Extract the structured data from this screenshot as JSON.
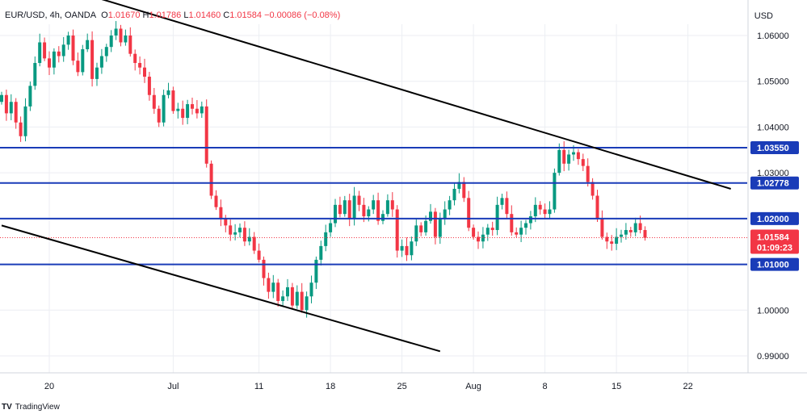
{
  "legend": {
    "symbol": "EUR/USD, 4h, OANDA",
    "open_label": "O",
    "open": "1.01670",
    "high_label": "H",
    "high": "1.01786",
    "low_label": "L",
    "low": "1.01460",
    "close_label": "C",
    "close": "1.01584",
    "change": "−0.00086 (−0.08%)"
  },
  "currency": "USD",
  "footer": {
    "brand_mark": "TV",
    "brand_text": "TradingView"
  },
  "colors": {
    "up": "#089981",
    "down": "#f23645",
    "level_line": "#1a3cb8",
    "trend_line": "#000000",
    "grid": "#eceef3",
    "current_price": "#f23645"
  },
  "chart_data": {
    "type": "candlestick",
    "instrument": "EUR/USD",
    "timeframe": "4h",
    "ylim": [
      0.9865,
      1.0655
    ],
    "price_ticks": [
      "1.06000",
      "1.05000",
      "1.04000",
      "1.03000",
      "1.00000",
      "0.99000"
    ],
    "time_ticks": [
      {
        "label": "20",
        "index": 10
      },
      {
        "label": "Jul",
        "index": 36
      },
      {
        "label": "11",
        "index": 54
      },
      {
        "label": "18",
        "index": 69
      },
      {
        "label": "25",
        "index": 84
      },
      {
        "label": "Aug",
        "index": 99
      },
      {
        "label": "8",
        "index": 114
      },
      {
        "label": "15",
        "index": 129
      },
      {
        "label": "22",
        "index": 144
      }
    ],
    "horizontal_levels": [
      {
        "value": 1.0355,
        "label": "1.03550"
      },
      {
        "value": 1.02778,
        "label": "1.02778"
      },
      {
        "value": 1.02,
        "label": "1.02000"
      },
      {
        "value": 1.01,
        "label": "1.01000"
      }
    ],
    "trend_lines": [
      {
        "from": {
          "index": 16,
          "price": 1.0695
        },
        "to": {
          "index": 153,
          "price": 1.0265
        }
      },
      {
        "from": {
          "index": 0,
          "price": 1.0185
        },
        "to": {
          "index": 92,
          "price": 0.991
        }
      }
    ],
    "current_price": {
      "value": 1.01584,
      "label": "1.01584",
      "countdown": "01:09:23"
    },
    "closes": [
      1.047,
      1.043,
      1.0455,
      1.041,
      1.038,
      1.0445,
      1.049,
      1.054,
      1.0585,
      1.055,
      1.053,
      1.0565,
      1.0555,
      1.058,
      1.06,
      1.0545,
      1.052,
      1.057,
      1.059,
      1.0505,
      1.053,
      1.0555,
      1.0575,
      1.06,
      1.0615,
      1.0585,
      1.06,
      1.056,
      1.054,
      1.053,
      1.051,
      1.047,
      1.044,
      1.041,
      1.047,
      1.048,
      1.0435,
      1.044,
      1.042,
      1.045,
      1.044,
      1.043,
      1.0445,
      1.032,
      1.025,
      1.0225,
      1.02,
      1.0185,
      1.0165,
      1.017,
      1.018,
      1.015,
      1.016,
      1.013,
      1.011,
      1.007,
      1.004,
      1.006,
      1.002,
      1.003,
      1.005,
      1.001,
      1.004,
      1.0,
      1.003,
      1.006,
      1.011,
      1.014,
      1.017,
      1.019,
      1.023,
      1.021,
      1.024,
      1.02,
      1.025,
      1.023,
      1.0205,
      1.022,
      1.024,
      1.0195,
      1.021,
      1.024,
      1.022,
      1.013,
      1.014,
      1.012,
      1.015,
      1.0185,
      1.017,
      1.0195,
      1.0215,
      1.016,
      1.02,
      1.022,
      1.024,
      1.0265,
      1.028,
      1.0245,
      1.018,
      1.016,
      1.015,
      1.0165,
      1.018,
      1.0175,
      1.023,
      1.0245,
      1.021,
      1.017,
      1.0165,
      1.018,
      1.019,
      1.0205,
      1.023,
      1.022,
      1.021,
      1.022,
      1.03,
      1.035,
      1.032,
      1.034,
      1.0345,
      1.033,
      1.0315,
      1.028,
      1.025,
      1.02,
      1.016,
      1.015,
      1.0145,
      1.016,
      1.0165,
      1.0175,
      1.017,
      1.019,
      1.0175,
      1.0158
    ]
  }
}
